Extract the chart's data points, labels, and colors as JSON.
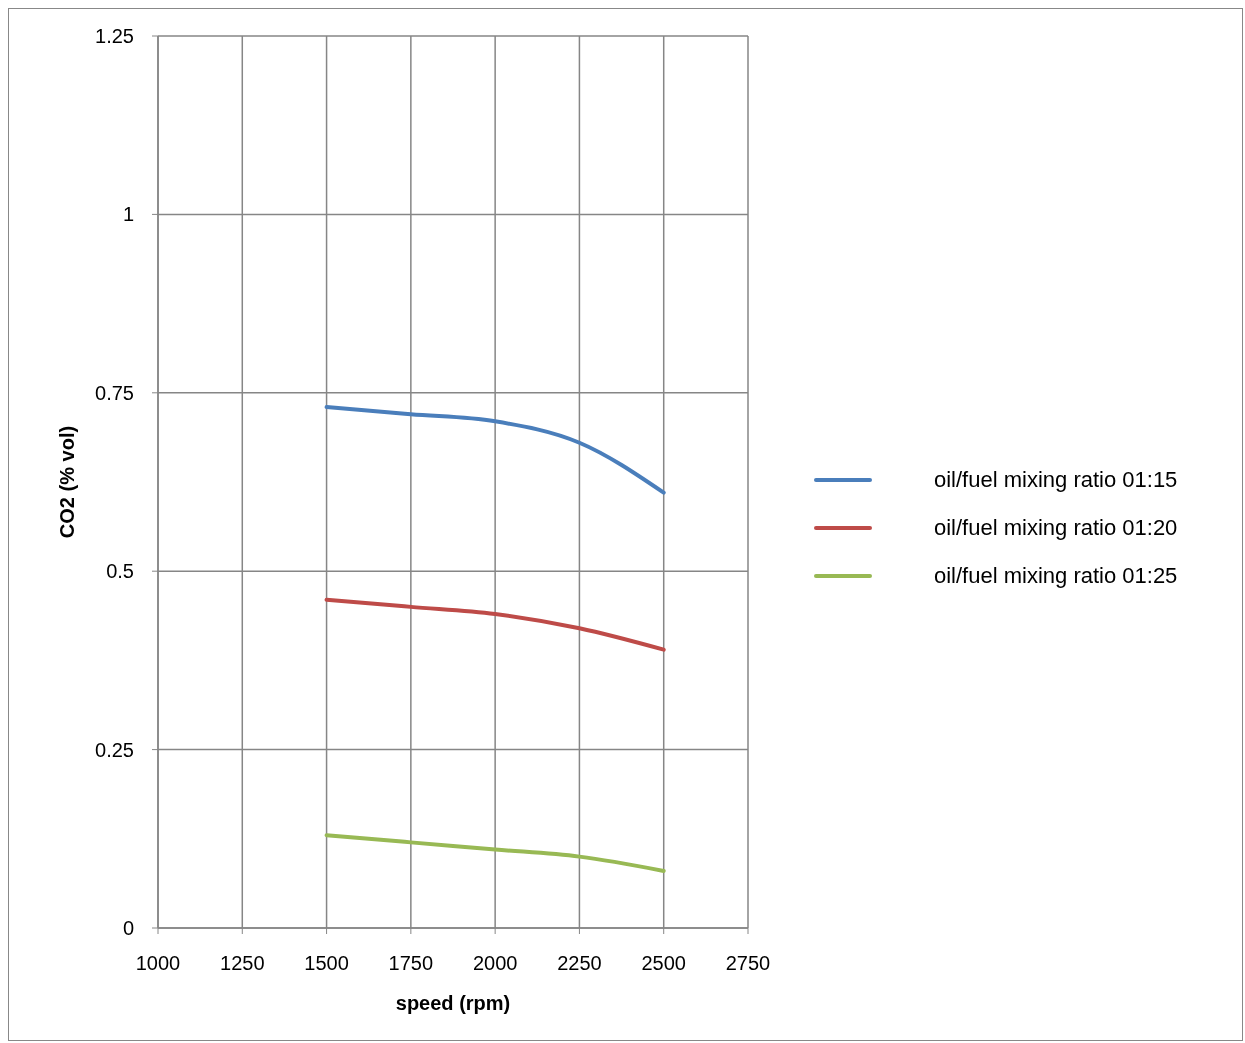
{
  "chart_data": {
    "type": "line",
    "xlabel": "speed (rpm)",
    "ylabel": "CO2 (% vol)",
    "x": [
      1500,
      1750,
      2000,
      2250,
      2500
    ],
    "xlim": [
      1000,
      2750
    ],
    "xticks": [
      1000,
      1250,
      1500,
      1750,
      2000,
      2250,
      2500,
      2750
    ],
    "ylim": [
      0,
      1.25
    ],
    "yticks": [
      0,
      0.25,
      0.5,
      0.75,
      1,
      1.25
    ],
    "grid": true,
    "legend": "right",
    "marker": "none",
    "line_style": "solid",
    "series": [
      {
        "name": "oil/fuel mixing ratio 01:15",
        "color": "#4a7ebb",
        "values": [
          0.73,
          0.72,
          0.71,
          0.68,
          0.61
        ]
      },
      {
        "name": "oil/fuel mixing ratio 01:20",
        "color": "#be4b48",
        "values": [
          0.46,
          0.45,
          0.44,
          0.42,
          0.39
        ]
      },
      {
        "name": "oil/fuel mixing ratio 01:25",
        "color": "#98b954",
        "values": [
          0.13,
          0.12,
          0.11,
          0.1,
          0.08
        ]
      }
    ]
  }
}
